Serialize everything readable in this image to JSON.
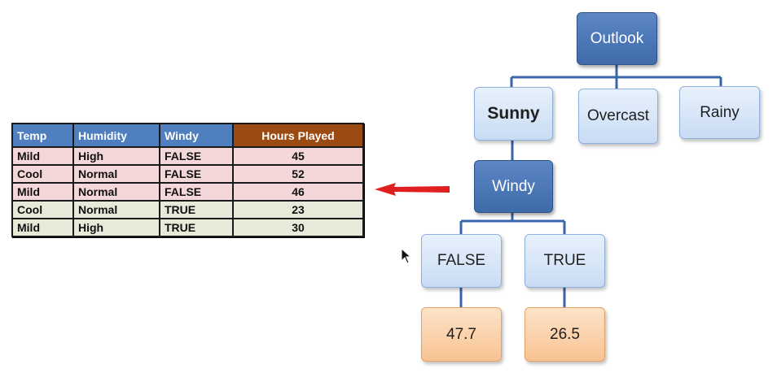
{
  "table": {
    "headers": [
      "Temp",
      "Humidity",
      "Windy",
      "Hours Played"
    ],
    "rows": [
      [
        "Mild",
        "High",
        "FALSE",
        "45"
      ],
      [
        "Cool",
        "Normal",
        "FALSE",
        "52"
      ],
      [
        "Mild",
        "Normal",
        "FALSE",
        "46"
      ],
      [
        "Cool",
        "Normal",
        "TRUE",
        "23"
      ],
      [
        "Mild",
        "High",
        "TRUE",
        "30"
      ]
    ],
    "colors": {
      "header": "#4f7fbe",
      "header_hours": "#9b4a12",
      "row_false": "#f4d7d9",
      "row_true": "#e6ead9"
    }
  },
  "arrow": {
    "icon": "left-arrow-icon",
    "color": "#e02020"
  },
  "tree": {
    "root": "Outlook",
    "outlook_children": [
      "Sunny",
      "Overcast",
      "Rainy"
    ],
    "sunny_child": "Windy",
    "windy_children": [
      "FALSE",
      "TRUE"
    ],
    "leaves": [
      "47.7",
      "26.5"
    ],
    "colors": {
      "dark_node": "#4a76b6",
      "light_node": "#d6e5f8",
      "leaf_node": "#f9cfa5",
      "connector": "#3a65a8"
    }
  }
}
